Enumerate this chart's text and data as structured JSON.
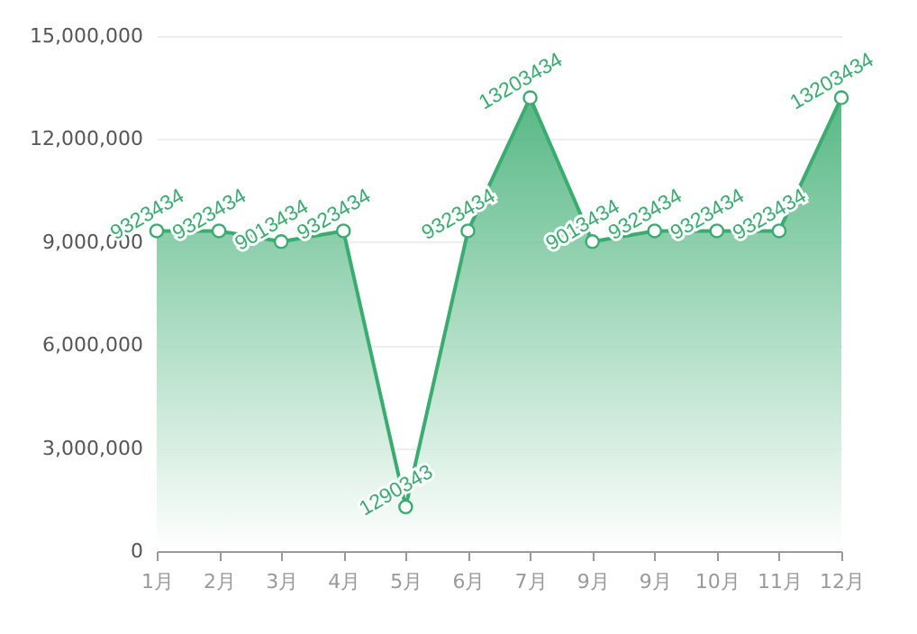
{
  "chart_data": {
    "type": "area",
    "categories": [
      "1月",
      "2月",
      "3月",
      "4月",
      "5月",
      "6月",
      "7月",
      "9月",
      "9月",
      "10月",
      "11月",
      "12月"
    ],
    "series": [
      {
        "color": "#3aac70",
        "values": [
          9323434,
          9323434,
          9013434,
          9323434,
          1290343,
          9323434,
          13203434,
          9013434,
          9323434,
          9323434,
          9323434,
          13203434
        ]
      }
    ],
    "ylim": [
      0,
      15000000
    ],
    "yticks": [
      {
        "value": 0,
        "label": "0"
      },
      {
        "value": 3000000,
        "label": "3,000,000"
      },
      {
        "value": 6000000,
        "label": "6,000,000"
      },
      {
        "value": 9000000,
        "label": "9,000,000"
      },
      {
        "value": 12000000,
        "label": "12,000,000"
      },
      {
        "value": 15000000,
        "label": "15,000,000"
      }
    ],
    "grid": "y",
    "marker": "circle",
    "line_style": "solid",
    "data_labels": true
  }
}
